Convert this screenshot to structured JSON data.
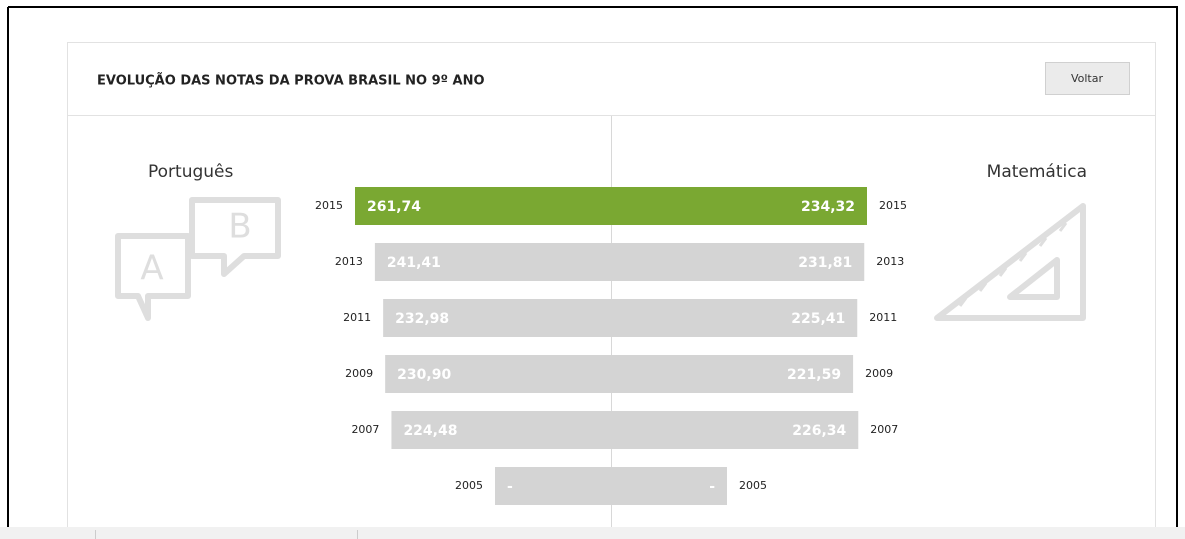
{
  "header": {
    "title": "EVOLUÇÃO DAS NOTAS DA PROVA BRASIL NO 9º ANO",
    "button": "Voltar"
  },
  "chart_data": {
    "type": "butterfly",
    "categories": [
      "2015",
      "2013",
      "2011",
      "2009",
      "2007",
      "2005"
    ],
    "series": [
      {
        "name": "Português",
        "colors": [
          "#7aa832",
          "#d4d4d4",
          "#d4d4d4",
          "#d4d4d4",
          "#d4d4d4",
          "#d4d4d4"
        ],
        "values": [
          261.74,
          241.41,
          232.98,
          230.9,
          224.48,
          null
        ],
        "value_labels": [
          "261,74",
          "241,41",
          "232,98",
          "230,90",
          "224,48",
          "-"
        ]
      },
      {
        "name": "Matemática",
        "colors": [
          "#7aa832",
          "#d4d4d4",
          "#d4d4d4",
          "#d4d4d4",
          "#d4d4d4",
          "#d4d4d4"
        ],
        "values": [
          234.32,
          231.81,
          225.41,
          221.59,
          226.34,
          null
        ],
        "value_labels": [
          "234,32",
          "231,81",
          "225,41",
          "221,59",
          "226,34",
          "-"
        ]
      }
    ]
  }
}
